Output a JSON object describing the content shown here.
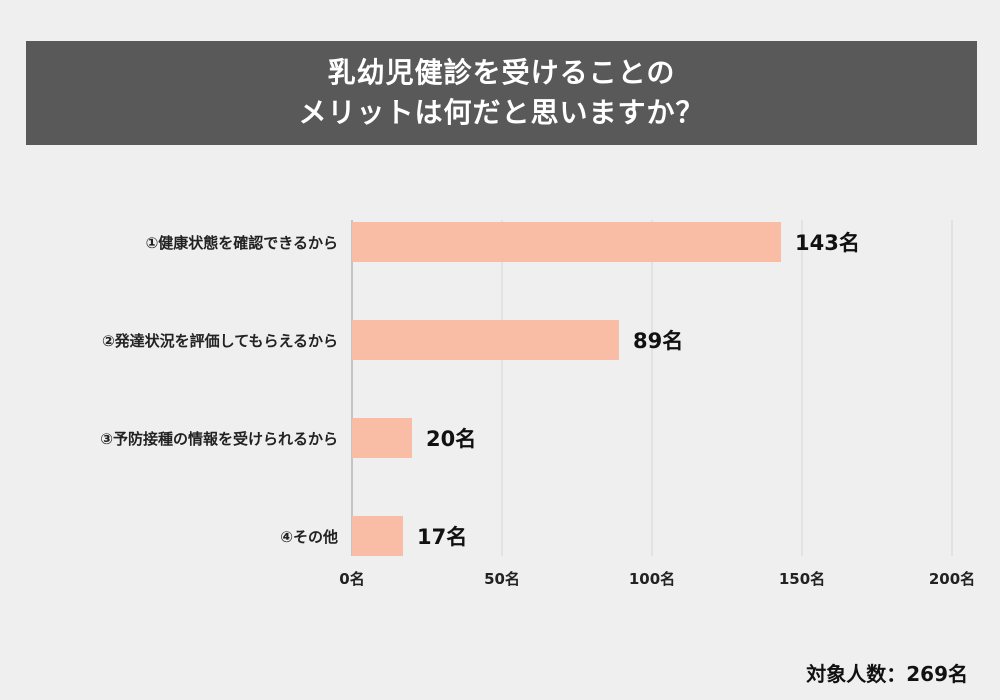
{
  "title_lines": [
    "乳幼児健診を受けることの",
    "メリットは何だと思いますか？"
  ],
  "footer": "対象人数：269名",
  "colors": {
    "bar": "#f9bca5",
    "banner": "#595959",
    "grid": "#d4d4d4",
    "axis": "#9a9a9a"
  },
  "chart_data": {
    "type": "bar",
    "orientation": "horizontal",
    "categories": [
      "①健康状態を確認できるから",
      "②発達状況を評価してもらえるから",
      "③予防接種の情報を受けられるから",
      "④その他"
    ],
    "values": [
      143,
      89,
      20,
      17
    ],
    "value_labels": [
      "143名",
      "89名",
      "20名",
      "17名"
    ],
    "xlim": [
      0,
      200
    ],
    "xticks": [
      0,
      50,
      100,
      150,
      200
    ],
    "xtick_labels": [
      "0名",
      "50名",
      "100名",
      "150名",
      "200名"
    ],
    "grid": true
  }
}
